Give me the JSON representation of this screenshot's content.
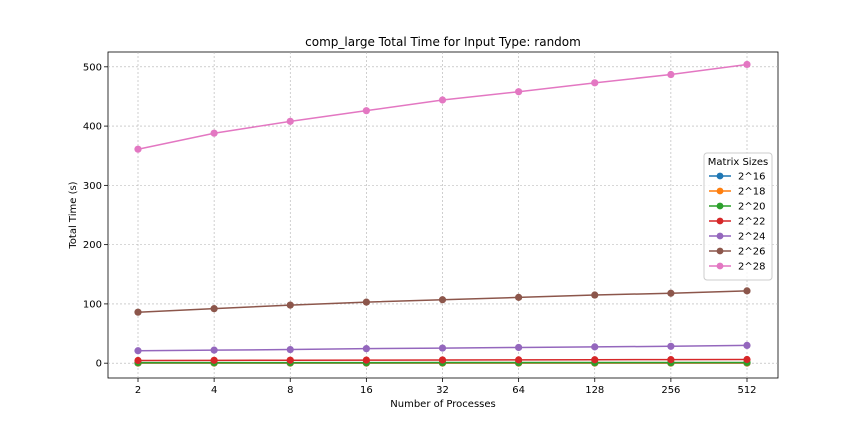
{
  "chart_data": {
    "type": "line",
    "title": "comp_large Total Time for Input Type: random",
    "xlabel": "Number of Processes",
    "ylabel": "Total Time (s)",
    "categories": [
      "2",
      "4",
      "8",
      "16",
      "32",
      "64",
      "128",
      "256",
      "512"
    ],
    "y_ticks": [
      "0",
      "100",
      "200",
      "300",
      "400",
      "500"
    ],
    "ylim": [
      -25,
      525
    ],
    "grid": true,
    "legend": {
      "title": "Matrix Sizes",
      "placement": "right"
    },
    "series": [
      {
        "name": "2^16",
        "color": "#1f77b4",
        "values": [
          0.1,
          0.1,
          0.1,
          0.1,
          0.1,
          0.1,
          0.1,
          0.1,
          0.1
        ]
      },
      {
        "name": "2^18",
        "color": "#ff7f0e",
        "values": [
          0.3,
          0.3,
          0.3,
          0.3,
          0.3,
          0.3,
          0.3,
          0.3,
          0.3
        ]
      },
      {
        "name": "2^20",
        "color": "#2ca02c",
        "values": [
          1.0,
          1.0,
          1.0,
          1.0,
          1.1,
          1.1,
          1.1,
          1.1,
          1.2
        ]
      },
      {
        "name": "2^22",
        "color": "#d62728",
        "values": [
          4.5,
          4.8,
          5.0,
          5.2,
          5.4,
          5.6,
          5.8,
          6.0,
          6.2
        ]
      },
      {
        "name": "2^24",
        "color": "#9467bd",
        "values": [
          21,
          22,
          23,
          24.5,
          25.5,
          26.5,
          27.5,
          28.5,
          30
        ]
      },
      {
        "name": "2^26",
        "color": "#8c564b",
        "values": [
          86,
          92,
          98,
          103,
          107,
          111,
          115,
          118,
          122
        ]
      },
      {
        "name": "2^28",
        "color": "#e377c2",
        "values": [
          361,
          388,
          408,
          426,
          444,
          458,
          473,
          487,
          504
        ]
      }
    ]
  }
}
